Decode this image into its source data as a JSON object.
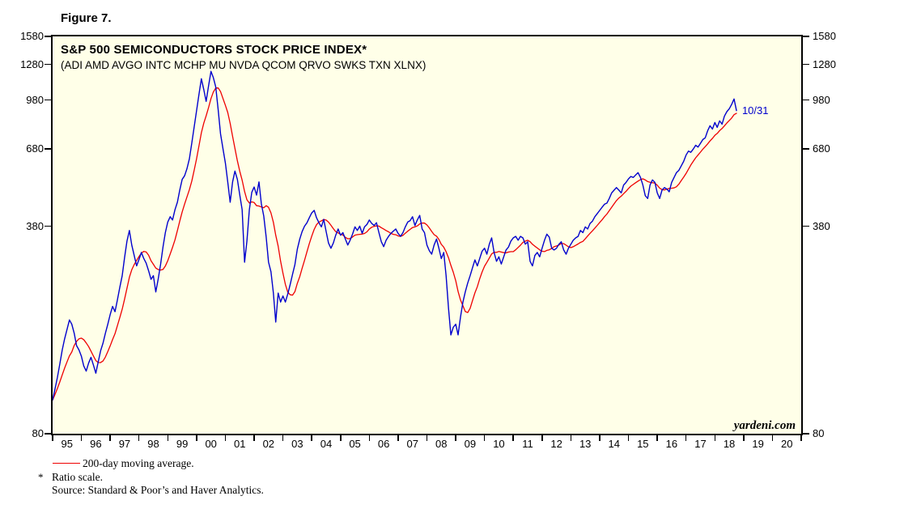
{
  "figure": {
    "label": "Figure 7."
  },
  "chart": {
    "title": "S&P 500 SEMICONDUCTORS STOCK PRICE INDEX*",
    "subtitle": "(ADI AMD AVGO INTC MCHP MU NVDA QCOM QRVO SWKS TXN XLNX)",
    "watermark": "yardeni.com",
    "last_point_label": "10/31",
    "colors": {
      "price": "#0000CD",
      "moving_average": "#EE0000",
      "plot_background": "#FFFFE8",
      "frame": "#000000",
      "annotation": "#0000CD"
    }
  },
  "legend": {
    "ma_label": "200-day moving average."
  },
  "footnotes": {
    "asterisk_symbol": "*",
    "ratio_scale": "Ratio scale.",
    "source": "Source: Standard & Poor’s and Haver Analytics."
  },
  "chart_data": {
    "type": "line",
    "title": "S&P 500 Semiconductors Stock Price Index",
    "scale_y": "log (ratio scale)",
    "x_domain_years": [
      1995,
      2021
    ],
    "ylim": [
      80,
      1580
    ],
    "yticks": [
      80,
      380,
      680,
      980,
      1280,
      1580
    ],
    "xtick_labels": [
      "95",
      "96",
      "97",
      "98",
      "99",
      "00",
      "01",
      "02",
      "03",
      "04",
      "05",
      "06",
      "07",
      "08",
      "09",
      "10",
      "11",
      "12",
      "13",
      "14",
      "15",
      "16",
      "17",
      "18",
      "19",
      "20"
    ],
    "grid": false,
    "legend_position": "below chart",
    "annotations": [
      {
        "text": "10/31",
        "x_year": 2018.83,
        "y_value": 905
      }
    ],
    "series": [
      {
        "name": "S&P 500 Semiconductors stock price index",
        "color": "#0000CD",
        "start_year": 1995,
        "interval": "monthly",
        "values": [
          103,
          112,
          122,
          135,
          150,
          163,
          175,
          188,
          182,
          170,
          155,
          150,
          143,
          133,
          128,
          136,
          142,
          134,
          126,
          137,
          149,
          158,
          170,
          182,
          196,
          208,
          200,
          218,
          240,
          262,
          300,
          340,
          368,
          330,
          305,
          282,
          296,
          312,
          298,
          288,
          272,
          255,
          262,
          232,
          255,
          285,
          325,
          362,
          392,
          408,
          398,
          430,
          455,
          498,
          540,
          555,
          585,
          630,
          710,
          800,
          905,
          1020,
          1150,
          1060,
          970,
          1090,
          1215,
          1160,
          1080,
          910,
          760,
          680,
          610,
          530,
          455,
          530,
          575,
          540,
          480,
          430,
          290,
          340,
          430,
          490,
          510,
          480,
          530,
          450,
          410,
          350,
          290,
          270,
          230,
          185,
          230,
          215,
          225,
          215,
          228,
          245,
          265,
          285,
          320,
          345,
          365,
          380,
          390,
          405,
          420,
          428,
          405,
          390,
          378,
          400,
          365,
          335,
          322,
          335,
          355,
          372,
          355,
          362,
          345,
          330,
          342,
          358,
          378,
          368,
          380,
          360,
          378,
          385,
          398,
          388,
          382,
          390,
          362,
          338,
          326,
          342,
          352,
          360,
          366,
          372,
          360,
          352,
          362,
          378,
          392,
          396,
          408,
          382,
          398,
          412,
          372,
          362,
          330,
          316,
          308,
          330,
          345,
          322,
          298,
          312,
          262,
          205,
          168,
          178,
          182,
          168,
          192,
          215,
          232,
          248,
          262,
          278,
          295,
          282,
          298,
          315,
          322,
          308,
          332,
          348,
          312,
          292,
          302,
          286,
          302,
          318,
          325,
          340,
          348,
          352,
          342,
          352,
          348,
          332,
          338,
          292,
          282,
          305,
          312,
          302,
          322,
          342,
          358,
          350,
          322,
          318,
          322,
          332,
          338,
          318,
          308,
          322,
          332,
          342,
          348,
          352,
          368,
          362,
          378,
          372,
          388,
          395,
          408,
          418,
          428,
          438,
          448,
          452,
          468,
          488,
          498,
          508,
          498,
          488,
          518,
          528,
          542,
          552,
          548,
          558,
          568,
          548,
          518,
          478,
          468,
          518,
          538,
          528,
          488,
          468,
          498,
          508,
          502,
          492,
          528,
          548,
          568,
          578,
          598,
          618,
          648,
          668,
          662,
          678,
          698,
          688,
          708,
          728,
          738,
          778,
          808,
          788,
          828,
          798,
          838,
          818,
          868,
          898,
          918,
          948,
          988,
          905
        ]
      },
      {
        "name": "200-day moving average",
        "color": "#EE0000",
        "derived_from": "series 0",
        "method": "trailing mean over 9 monthly samples"
      }
    ]
  }
}
